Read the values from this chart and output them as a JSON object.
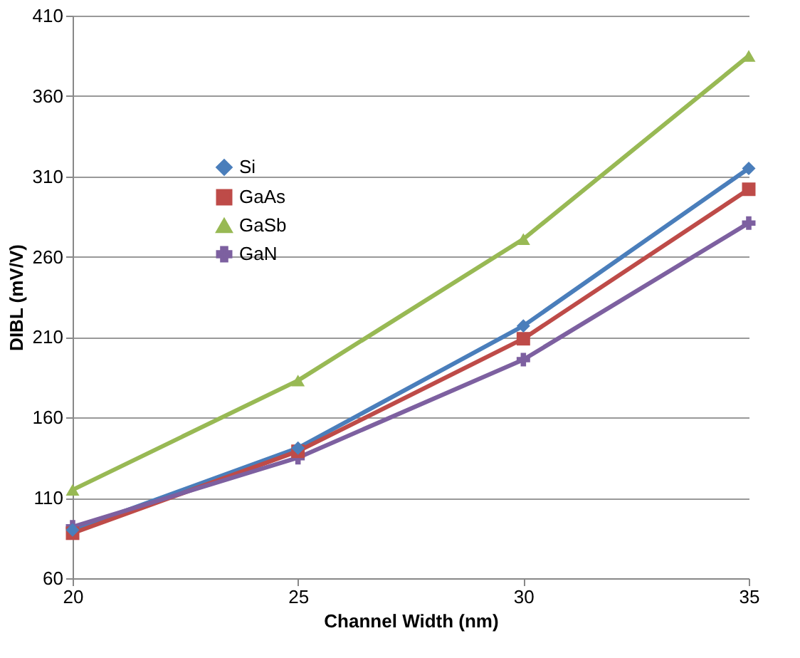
{
  "chart_data": {
    "type": "line",
    "xlabel": "Channel Width (nm)",
    "ylabel": "DIBL (mV/V)",
    "x": [
      20,
      25,
      30,
      35
    ],
    "xlim": [
      20,
      35
    ],
    "xticks": [
      20,
      25,
      30,
      35
    ],
    "ylim": [
      60,
      410
    ],
    "yticks": [
      60,
      110,
      160,
      210,
      260,
      310,
      360,
      410
    ],
    "grid": "y",
    "legend": "top left",
    "line_style": "solid",
    "series": [
      {
        "name": "Si",
        "color": "#4a7ebb",
        "marker": "diamond",
        "values": [
          90,
          141,
          217,
          315
        ]
      },
      {
        "name": "GaAs",
        "color": "#be4b48",
        "marker": "square",
        "values": [
          88,
          139,
          209,
          302
        ]
      },
      {
        "name": "GaSb",
        "color": "#98b954",
        "marker": "triangle",
        "values": [
          115,
          183,
          271,
          385
        ]
      },
      {
        "name": "GaN",
        "color": "#7d60a0",
        "marker": "cross",
        "values": [
          92,
          135,
          196,
          281
        ]
      }
    ]
  }
}
